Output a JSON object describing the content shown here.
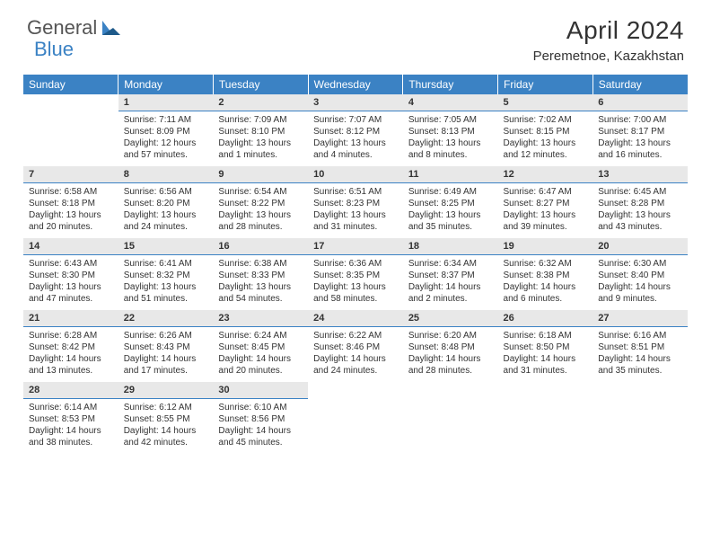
{
  "logo": {
    "text1": "General",
    "text2": "Blue"
  },
  "title": "April 2024",
  "location": "Peremetnoe, Kazakhstan",
  "colors": {
    "header_bg": "#3b82c4",
    "header_text": "#ffffff",
    "daynum_bg": "#e8e8e8",
    "daynum_border": "#3b82c4",
    "text": "#333333",
    "logo_gray": "#555555",
    "logo_blue": "#3b82c4"
  },
  "fonts": {
    "title_size": 28,
    "location_size": 15,
    "dayhead_size": 12,
    "daynum_size": 11,
    "detail_size": 10
  },
  "days_of_week": [
    "Sunday",
    "Monday",
    "Tuesday",
    "Wednesday",
    "Thursday",
    "Friday",
    "Saturday"
  ],
  "weeks": [
    [
      null,
      {
        "n": "1",
        "sunrise": "7:11 AM",
        "sunset": "8:09 PM",
        "daylight": "12 hours and 57 minutes."
      },
      {
        "n": "2",
        "sunrise": "7:09 AM",
        "sunset": "8:10 PM",
        "daylight": "13 hours and 1 minutes."
      },
      {
        "n": "3",
        "sunrise": "7:07 AM",
        "sunset": "8:12 PM",
        "daylight": "13 hours and 4 minutes."
      },
      {
        "n": "4",
        "sunrise": "7:05 AM",
        "sunset": "8:13 PM",
        "daylight": "13 hours and 8 minutes."
      },
      {
        "n": "5",
        "sunrise": "7:02 AM",
        "sunset": "8:15 PM",
        "daylight": "13 hours and 12 minutes."
      },
      {
        "n": "6",
        "sunrise": "7:00 AM",
        "sunset": "8:17 PM",
        "daylight": "13 hours and 16 minutes."
      }
    ],
    [
      {
        "n": "7",
        "sunrise": "6:58 AM",
        "sunset": "8:18 PM",
        "daylight": "13 hours and 20 minutes."
      },
      {
        "n": "8",
        "sunrise": "6:56 AM",
        "sunset": "8:20 PM",
        "daylight": "13 hours and 24 minutes."
      },
      {
        "n": "9",
        "sunrise": "6:54 AM",
        "sunset": "8:22 PM",
        "daylight": "13 hours and 28 minutes."
      },
      {
        "n": "10",
        "sunrise": "6:51 AM",
        "sunset": "8:23 PM",
        "daylight": "13 hours and 31 minutes."
      },
      {
        "n": "11",
        "sunrise": "6:49 AM",
        "sunset": "8:25 PM",
        "daylight": "13 hours and 35 minutes."
      },
      {
        "n": "12",
        "sunrise": "6:47 AM",
        "sunset": "8:27 PM",
        "daylight": "13 hours and 39 minutes."
      },
      {
        "n": "13",
        "sunrise": "6:45 AM",
        "sunset": "8:28 PM",
        "daylight": "13 hours and 43 minutes."
      }
    ],
    [
      {
        "n": "14",
        "sunrise": "6:43 AM",
        "sunset": "8:30 PM",
        "daylight": "13 hours and 47 minutes."
      },
      {
        "n": "15",
        "sunrise": "6:41 AM",
        "sunset": "8:32 PM",
        "daylight": "13 hours and 51 minutes."
      },
      {
        "n": "16",
        "sunrise": "6:38 AM",
        "sunset": "8:33 PM",
        "daylight": "13 hours and 54 minutes."
      },
      {
        "n": "17",
        "sunrise": "6:36 AM",
        "sunset": "8:35 PM",
        "daylight": "13 hours and 58 minutes."
      },
      {
        "n": "18",
        "sunrise": "6:34 AM",
        "sunset": "8:37 PM",
        "daylight": "14 hours and 2 minutes."
      },
      {
        "n": "19",
        "sunrise": "6:32 AM",
        "sunset": "8:38 PM",
        "daylight": "14 hours and 6 minutes."
      },
      {
        "n": "20",
        "sunrise": "6:30 AM",
        "sunset": "8:40 PM",
        "daylight": "14 hours and 9 minutes."
      }
    ],
    [
      {
        "n": "21",
        "sunrise": "6:28 AM",
        "sunset": "8:42 PM",
        "daylight": "14 hours and 13 minutes."
      },
      {
        "n": "22",
        "sunrise": "6:26 AM",
        "sunset": "8:43 PM",
        "daylight": "14 hours and 17 minutes."
      },
      {
        "n": "23",
        "sunrise": "6:24 AM",
        "sunset": "8:45 PM",
        "daylight": "14 hours and 20 minutes."
      },
      {
        "n": "24",
        "sunrise": "6:22 AM",
        "sunset": "8:46 PM",
        "daylight": "14 hours and 24 minutes."
      },
      {
        "n": "25",
        "sunrise": "6:20 AM",
        "sunset": "8:48 PM",
        "daylight": "14 hours and 28 minutes."
      },
      {
        "n": "26",
        "sunrise": "6:18 AM",
        "sunset": "8:50 PM",
        "daylight": "14 hours and 31 minutes."
      },
      {
        "n": "27",
        "sunrise": "6:16 AM",
        "sunset": "8:51 PM",
        "daylight": "14 hours and 35 minutes."
      }
    ],
    [
      {
        "n": "28",
        "sunrise": "6:14 AM",
        "sunset": "8:53 PM",
        "daylight": "14 hours and 38 minutes."
      },
      {
        "n": "29",
        "sunrise": "6:12 AM",
        "sunset": "8:55 PM",
        "daylight": "14 hours and 42 minutes."
      },
      {
        "n": "30",
        "sunrise": "6:10 AM",
        "sunset": "8:56 PM",
        "daylight": "14 hours and 45 minutes."
      },
      null,
      null,
      null,
      null
    ]
  ],
  "labels": {
    "sunrise": "Sunrise:",
    "sunset": "Sunset:",
    "daylight": "Daylight:"
  }
}
